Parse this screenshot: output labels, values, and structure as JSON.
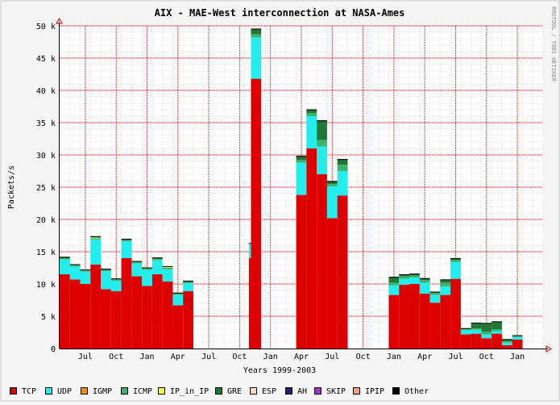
{
  "chart_data": {
    "type": "bar",
    "stacked": true,
    "title": "AIX - MAE-West interconnection at NASA-Ames",
    "xlabel": "Years 1999-2003",
    "ylabel": "Packets/s",
    "watermark": "RRDTOOL / TOBI OETIKER",
    "ylim": [
      0,
      50000
    ],
    "y_ticks": [
      {
        "value": 0,
        "label": "0"
      },
      {
        "value": 5000,
        "label": "5 k"
      },
      {
        "value": 10000,
        "label": "10 k"
      },
      {
        "value": 15000,
        "label": "15 k"
      },
      {
        "value": 20000,
        "label": "20 k"
      },
      {
        "value": 25000,
        "label": "25 k"
      },
      {
        "value": 30000,
        "label": "30 k"
      },
      {
        "value": 35000,
        "label": "35 k"
      },
      {
        "value": 40000,
        "label": "40 k"
      },
      {
        "value": 45000,
        "label": "45 k"
      },
      {
        "value": 50000,
        "label": "50 k"
      }
    ],
    "x_ticks": [
      {
        "period": 2.5,
        "label": "Jul"
      },
      {
        "period": 5.5,
        "label": "Oct"
      },
      {
        "period": 8.5,
        "label": "Jan"
      },
      {
        "period": 11.5,
        "label": "Apr"
      },
      {
        "period": 14.5,
        "label": "Jul"
      },
      {
        "period": 17.5,
        "label": "Oct"
      },
      {
        "period": 20.5,
        "label": "Jan"
      },
      {
        "period": 23.5,
        "label": "Apr"
      },
      {
        "period": 26.5,
        "label": "Jul"
      },
      {
        "period": 29.5,
        "label": "Oct"
      },
      {
        "period": 32.5,
        "label": "Jan"
      },
      {
        "period": 35.5,
        "label": "Apr"
      },
      {
        "period": 38.5,
        "label": "Jul"
      },
      {
        "period": 41.5,
        "label": "Oct"
      },
      {
        "period": 44.5,
        "label": "Jan"
      }
    ],
    "periods_total": 47,
    "series": [
      {
        "name": "TCP",
        "color": "#dd0000"
      },
      {
        "name": "UDP",
        "color": "#22eeee"
      },
      {
        "name": "IGMP",
        "color": "#ff8c00"
      },
      {
        "name": "ICMP",
        "color": "#3cb371"
      },
      {
        "name": "IP_in_IP",
        "color": "#ffff33"
      },
      {
        "name": "GRE",
        "color": "#227733"
      },
      {
        "name": "ESP",
        "color": "#ffdab9"
      },
      {
        "name": "AH",
        "color": "#1a237e"
      },
      {
        "name": "SKIP",
        "color": "#aa33cc"
      },
      {
        "name": "IPIP",
        "color": "#f4a080"
      },
      {
        "name": "Other",
        "color": "#000000"
      }
    ],
    "bars": [
      {
        "start": 0,
        "end": 1,
        "values": {
          "TCP": 11500,
          "UDP": 2300,
          "ICMP": 200,
          "GRE": 100,
          "Other": 50
        }
      },
      {
        "start": 1,
        "end": 2,
        "values": {
          "TCP": 10700,
          "UDP": 2000,
          "ICMP": 200,
          "GRE": 100
        }
      },
      {
        "start": 2,
        "end": 3,
        "values": {
          "TCP": 10000,
          "UDP": 1900,
          "ICMP": 200,
          "GRE": 100
        }
      },
      {
        "start": 3,
        "end": 4,
        "values": {
          "TCP": 13000,
          "UDP": 3900,
          "ICMP": 200,
          "IP_in_IP": 100,
          "GRE": 100,
          "Other": 50
        }
      },
      {
        "start": 4,
        "end": 5,
        "values": {
          "TCP": 9200,
          "UDP": 2800,
          "ICMP": 150,
          "GRE": 100,
          "Other": 50
        }
      },
      {
        "start": 5,
        "end": 6,
        "values": {
          "TCP": 8900,
          "UDP": 1600,
          "ICMP": 200,
          "GRE": 100
        }
      },
      {
        "start": 6,
        "end": 7,
        "values": {
          "TCP": 14000,
          "UDP": 2600,
          "ICMP": 200,
          "GRE": 100,
          "Other": 50
        }
      },
      {
        "start": 7,
        "end": 8,
        "values": {
          "TCP": 11200,
          "UDP": 2000,
          "ICMP": 200,
          "GRE": 100
        }
      },
      {
        "start": 8,
        "end": 9,
        "values": {
          "TCP": 9700,
          "UDP": 2500,
          "ICMP": 200,
          "GRE": 100
        }
      },
      {
        "start": 9,
        "end": 10,
        "values": {
          "TCP": 11500,
          "UDP": 2200,
          "ICMP": 200,
          "GRE": 100,
          "Other": 50
        }
      },
      {
        "start": 10,
        "end": 11,
        "values": {
          "TCP": 10400,
          "UDP": 1900,
          "ICMP": 200,
          "IP_in_IP": 100,
          "GRE": 100
        }
      },
      {
        "start": 11,
        "end": 12,
        "values": {
          "TCP": 6700,
          "UDP": 1600,
          "ICMP": 200,
          "GRE": 100
        }
      },
      {
        "start": 12,
        "end": 13,
        "values": {
          "TCP": 8900,
          "UDP": 1200,
          "ICMP": 200,
          "GRE": 100,
          "Other": 50
        }
      },
      {
        "start": 18.4,
        "end": 18.6,
        "values": {
          "TCP": 14000,
          "UDP": 2300
        }
      },
      {
        "start": 18.6,
        "end": 19.6,
        "values": {
          "TCP": 41800,
          "UDP": 6400,
          "ICMP": 500,
          "GRE": 700,
          "Other": 100
        }
      },
      {
        "start": 23,
        "end": 24,
        "values": {
          "TCP": 23800,
          "UDP": 5000,
          "ICMP": 400,
          "GRE": 500,
          "Other": 100
        }
      },
      {
        "start": 24,
        "end": 25,
        "values": {
          "TCP": 31000,
          "UDP": 5000,
          "ICMP": 500,
          "GRE": 400,
          "Other": 100
        }
      },
      {
        "start": 25,
        "end": 26,
        "values": {
          "TCP": 27000,
          "UDP": 4300,
          "ICMP": 1000,
          "GRE": 2900,
          "Other": 100
        }
      },
      {
        "start": 26,
        "end": 27,
        "values": {
          "TCP": 20200,
          "UDP": 4900,
          "ICMP": 400,
          "GRE": 300,
          "Other": 100
        }
      },
      {
        "start": 27,
        "end": 28,
        "values": {
          "TCP": 23700,
          "UDP": 3800,
          "ICMP": 1000,
          "GRE": 700,
          "Other": 100
        }
      },
      {
        "start": 32,
        "end": 33,
        "values": {
          "TCP": 8300,
          "UDP": 1500,
          "ICMP": 400,
          "GRE": 800,
          "Other": 50
        }
      },
      {
        "start": 33,
        "end": 34,
        "values": {
          "TCP": 9900,
          "UDP": 900,
          "ICMP": 400,
          "GRE": 200,
          "Other": 50
        }
      },
      {
        "start": 34,
        "end": 35,
        "values": {
          "TCP": 10000,
          "UDP": 1000,
          "ICMP": 300,
          "GRE": 200,
          "Other": 50
        }
      },
      {
        "start": 35,
        "end": 36,
        "values": {
          "TCP": 8500,
          "UDP": 1700,
          "ICMP": 400,
          "GRE": 200,
          "Other": 50
        }
      },
      {
        "start": 36,
        "end": 37,
        "values": {
          "TCP": 7100,
          "UDP": 1200,
          "ICMP": 300,
          "GRE": 100,
          "Other": 50
        }
      },
      {
        "start": 37,
        "end": 38,
        "values": {
          "TCP": 8300,
          "UDP": 1300,
          "ICMP": 600,
          "GRE": 400,
          "Other": 50
        }
      },
      {
        "start": 38,
        "end": 39,
        "values": {
          "TCP": 10800,
          "UDP": 2600,
          "ICMP": 300,
          "GRE": 200,
          "Other": 50
        }
      },
      {
        "start": 39,
        "end": 40,
        "values": {
          "TCP": 2200,
          "UDP": 700,
          "ICMP": 100,
          "GRE": 100
        }
      },
      {
        "start": 40,
        "end": 41,
        "values": {
          "TCP": 2300,
          "UDP": 600,
          "ICMP": 200,
          "GRE": 800,
          "Other": 50
        }
      },
      {
        "start": 41,
        "end": 42,
        "values": {
          "TCP": 1600,
          "UDP": 600,
          "ICMP": 400,
          "GRE": 1300
        }
      },
      {
        "start": 42,
        "end": 43,
        "values": {
          "TCP": 2300,
          "UDP": 400,
          "ICMP": 300,
          "GRE": 1100,
          "Other": 50
        }
      },
      {
        "start": 43,
        "end": 44,
        "values": {
          "TCP": 500,
          "UDP": 400,
          "ICMP": 200,
          "GRE": 300
        }
      },
      {
        "start": 44,
        "end": 45,
        "values": {
          "TCP": 1400,
          "UDP": 400,
          "ICMP": 100,
          "GRE": 100
        }
      }
    ]
  }
}
